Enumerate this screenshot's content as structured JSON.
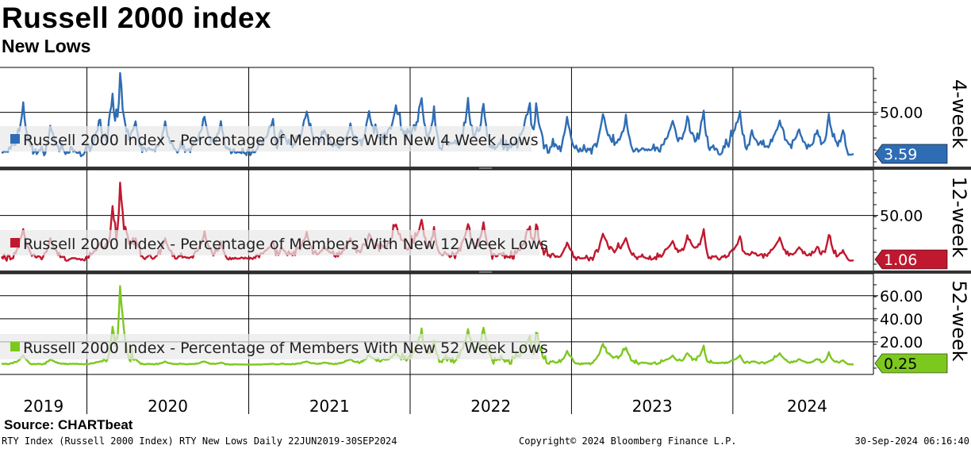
{
  "title": "Russell 2000 index",
  "subtitle": "New Lows",
  "source": "Source: CHARTbeat",
  "footer": {
    "left": "RTY Index (Russell 2000 Index) RTY New Lows  Daily 22JUN2019-30SEP2024",
    "middle": "Copyright© 2024 Bloomberg Finance L.P.",
    "right": "30-Sep-2024 06:16:40"
  },
  "chart_data": {
    "type": "line",
    "x_range": [
      "2019-06-22",
      "2024-09-30"
    ],
    "x_tick_labels": [
      "2019",
      "2020",
      "2021",
      "2022",
      "2023",
      "2024"
    ],
    "x_tick_dates": [
      "2019-01-01",
      "2020-01-01",
      "2021-01-01",
      "2022-01-01",
      "2023-01-01",
      "2024-01-01"
    ],
    "panels": [
      {
        "side_label": "4-week",
        "legend": "Russell 2000 Index - Percentage of Members With New 4 Week Lows",
        "color": "#2E6DB4",
        "ylim": [
          0,
          95
        ],
        "y_ticks": [
          {
            "value": 50,
            "label": "50.00"
          }
        ],
        "last_value_label": "3.59",
        "last_value": 3.59,
        "peaks": [
          [
            "2019-06-22",
            5
          ],
          [
            "2019-08-10",
            55
          ],
          [
            "2019-09-15",
            8
          ],
          [
            "2019-10-10",
            35
          ],
          [
            "2019-12-01",
            6
          ],
          [
            "2020-01-31",
            40
          ],
          [
            "2020-02-28",
            70
          ],
          [
            "2020-03-16",
            88
          ],
          [
            "2020-04-20",
            40
          ],
          [
            "2020-05-20",
            10
          ],
          [
            "2020-06-26",
            40
          ],
          [
            "2020-08-01",
            12
          ],
          [
            "2020-09-23",
            45
          ],
          [
            "2020-10-30",
            40
          ],
          [
            "2020-12-01",
            5
          ],
          [
            "2021-02-25",
            40
          ],
          [
            "2021-03-15",
            30
          ],
          [
            "2021-05-12",
            50
          ],
          [
            "2021-06-21",
            30
          ],
          [
            "2021-08-19",
            35
          ],
          [
            "2021-09-30",
            48
          ],
          [
            "2021-11-30",
            55
          ],
          [
            "2022-01-27",
            62
          ],
          [
            "2022-02-24",
            55
          ],
          [
            "2022-03-20",
            20
          ],
          [
            "2022-05-12",
            55
          ],
          [
            "2022-06-16",
            58
          ],
          [
            "2022-07-20",
            15
          ],
          [
            "2022-09-29",
            60
          ],
          [
            "2022-10-13",
            60
          ],
          [
            "2022-11-20",
            15
          ],
          [
            "2022-12-22",
            45
          ],
          [
            "2023-02-01",
            8
          ],
          [
            "2023-03-13",
            48
          ],
          [
            "2023-05-04",
            40
          ],
          [
            "2023-06-10",
            10
          ],
          [
            "2023-08-18",
            40
          ],
          [
            "2023-09-20",
            45
          ],
          [
            "2023-10-27",
            50
          ],
          [
            "2023-11-15",
            10
          ],
          [
            "2024-01-17",
            50
          ],
          [
            "2024-02-13",
            25
          ],
          [
            "2024-04-16",
            40
          ],
          [
            "2024-05-30",
            30
          ],
          [
            "2024-07-10",
            30
          ],
          [
            "2024-08-05",
            45
          ],
          [
            "2024-09-06",
            30
          ],
          [
            "2024-09-30",
            3.59
          ]
        ]
      },
      {
        "side_label": "12-week",
        "legend": "Russell 2000 Index - Percentage of Members With New 12 Week Lows",
        "color": "#C0182F",
        "ylim": [
          0,
          95
        ],
        "y_ticks": [
          {
            "value": 50,
            "label": "50.00"
          }
        ],
        "last_value_label": "1.06",
        "last_value": 1.06,
        "peaks": [
          [
            "2019-06-22",
            3
          ],
          [
            "2019-08-10",
            35
          ],
          [
            "2019-09-15",
            5
          ],
          [
            "2019-10-10",
            25
          ],
          [
            "2019-12-01",
            3
          ],
          [
            "2020-01-31",
            20
          ],
          [
            "2020-02-28",
            60
          ],
          [
            "2020-03-16",
            85
          ],
          [
            "2020-04-20",
            25
          ],
          [
            "2020-05-20",
            5
          ],
          [
            "2020-06-26",
            25
          ],
          [
            "2020-08-01",
            5
          ],
          [
            "2020-09-23",
            30
          ],
          [
            "2020-10-30",
            20
          ],
          [
            "2020-12-01",
            3
          ],
          [
            "2021-02-25",
            20
          ],
          [
            "2021-03-15",
            15
          ],
          [
            "2021-05-12",
            30
          ],
          [
            "2021-06-21",
            15
          ],
          [
            "2021-08-19",
            25
          ],
          [
            "2021-09-30",
            30
          ],
          [
            "2021-11-30",
            40
          ],
          [
            "2022-01-27",
            45
          ],
          [
            "2022-02-24",
            35
          ],
          [
            "2022-03-20",
            10
          ],
          [
            "2022-05-12",
            40
          ],
          [
            "2022-06-16",
            42
          ],
          [
            "2022-07-20",
            8
          ],
          [
            "2022-09-29",
            38
          ],
          [
            "2022-10-13",
            40
          ],
          [
            "2022-11-20",
            8
          ],
          [
            "2022-12-22",
            20
          ],
          [
            "2023-02-01",
            3
          ],
          [
            "2023-03-13",
            30
          ],
          [
            "2023-05-04",
            25
          ],
          [
            "2023-06-10",
            5
          ],
          [
            "2023-08-18",
            22
          ],
          [
            "2023-09-20",
            28
          ],
          [
            "2023-10-27",
            35
          ],
          [
            "2023-11-15",
            5
          ],
          [
            "2024-01-17",
            25
          ],
          [
            "2024-02-13",
            10
          ],
          [
            "2024-04-16",
            25
          ],
          [
            "2024-05-30",
            15
          ],
          [
            "2024-07-10",
            15
          ],
          [
            "2024-08-05",
            28
          ],
          [
            "2024-09-06",
            12
          ],
          [
            "2024-09-30",
            1.06
          ]
        ]
      },
      {
        "side_label": "52-week",
        "legend": "Russell 2000 Index - Percentage of Members With New 52 Week Lows",
        "color": "#7DC81E",
        "ylim": [
          0,
          75
        ],
        "y_ticks": [
          {
            "value": 20,
            "label": "20.00"
          },
          {
            "value": 40,
            "label": "40.00"
          },
          {
            "value": 60,
            "label": "60.00"
          }
        ],
        "last_value_label": "0.25",
        "last_value": 0.25,
        "peaks": [
          [
            "2019-06-22",
            1
          ],
          [
            "2019-08-10",
            8
          ],
          [
            "2019-09-15",
            1
          ],
          [
            "2019-10-10",
            5
          ],
          [
            "2019-12-01",
            1
          ],
          [
            "2020-01-31",
            3
          ],
          [
            "2020-02-28",
            30
          ],
          [
            "2020-03-16",
            68
          ],
          [
            "2020-04-20",
            5
          ],
          [
            "2020-05-20",
            1
          ],
          [
            "2020-06-26",
            3
          ],
          [
            "2020-08-01",
            1
          ],
          [
            "2020-09-23",
            3
          ],
          [
            "2020-10-30",
            2
          ],
          [
            "2020-12-01",
            0.5
          ],
          [
            "2021-02-25",
            1
          ],
          [
            "2021-03-15",
            1
          ],
          [
            "2021-05-12",
            3
          ],
          [
            "2021-06-21",
            2
          ],
          [
            "2021-08-19",
            5
          ],
          [
            "2021-09-30",
            8
          ],
          [
            "2021-11-30",
            10
          ],
          [
            "2022-01-27",
            28
          ],
          [
            "2022-02-24",
            20
          ],
          [
            "2022-03-20",
            5
          ],
          [
            "2022-05-12",
            30
          ],
          [
            "2022-06-16",
            32
          ],
          [
            "2022-07-20",
            5
          ],
          [
            "2022-09-29",
            25
          ],
          [
            "2022-10-13",
            28
          ],
          [
            "2022-11-20",
            3
          ],
          [
            "2022-12-22",
            12
          ],
          [
            "2023-02-01",
            1
          ],
          [
            "2023-03-13",
            18
          ],
          [
            "2023-05-04",
            15
          ],
          [
            "2023-06-10",
            2
          ],
          [
            "2023-08-18",
            8
          ],
          [
            "2023-09-20",
            10
          ],
          [
            "2023-10-27",
            16
          ],
          [
            "2023-11-15",
            2
          ],
          [
            "2024-01-17",
            8
          ],
          [
            "2024-02-13",
            3
          ],
          [
            "2024-04-16",
            10
          ],
          [
            "2024-05-30",
            5
          ],
          [
            "2024-07-10",
            5
          ],
          [
            "2024-08-05",
            10
          ],
          [
            "2024-09-06",
            4
          ],
          [
            "2024-09-30",
            0.25
          ]
        ]
      }
    ]
  }
}
